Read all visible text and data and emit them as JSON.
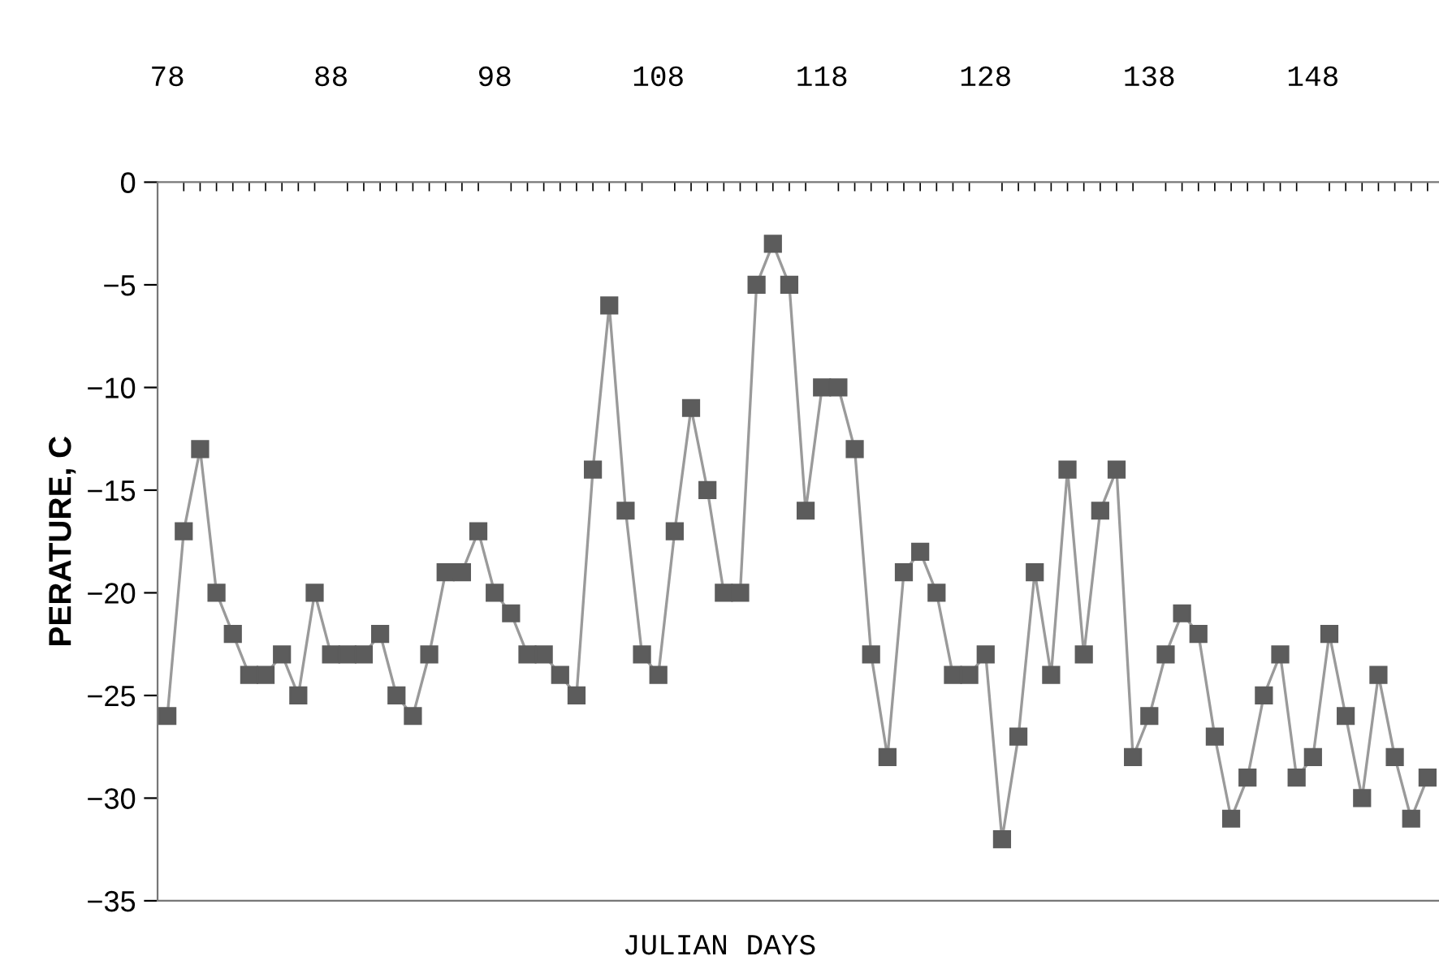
{
  "chart_data": {
    "type": "line",
    "xlabel": "JULIAN DAYS",
    "ylabel": "PERATURE, C",
    "x": [
      78,
      79,
      80,
      81,
      82,
      83,
      84,
      85,
      86,
      87,
      88,
      89,
      90,
      91,
      92,
      93,
      94,
      95,
      96,
      97,
      98,
      99,
      100,
      101,
      102,
      103,
      104,
      105,
      106,
      107,
      108,
      109,
      110,
      111,
      112,
      113,
      114,
      115,
      116,
      117,
      118,
      119,
      120,
      121,
      122,
      123,
      124,
      125,
      126,
      127,
      128,
      129,
      130,
      131,
      132,
      133,
      134,
      135,
      136,
      137,
      138,
      139,
      140,
      141,
      142,
      143,
      144,
      145,
      146,
      147,
      148,
      149,
      150,
      151,
      152,
      153,
      154,
      155
    ],
    "series": [
      {
        "color": "#5c5c5c",
        "values": [
          -26,
          -17,
          -13,
          -20,
          -22,
          -24,
          -24,
          -23,
          -25,
          -20,
          -23,
          -23,
          -23,
          -22,
          -25,
          -26,
          -23,
          -19,
          -19,
          -17,
          -20,
          -21,
          -23,
          -23,
          -24,
          -25,
          -14,
          -6,
          -16,
          -23,
          -24,
          -17,
          -11,
          -15,
          -20,
          -20,
          -5,
          -3,
          -5,
          -16,
          -10,
          -10,
          -13,
          -23,
          -28,
          -19,
          -18,
          -20,
          -24,
          -24,
          -23,
          -32,
          -27,
          -19,
          -24,
          -14,
          -23,
          -16,
          -14,
          -28,
          -26,
          -23,
          -21,
          -22,
          -27,
          -31,
          -29,
          -25,
          -23,
          -29,
          -28,
          -22,
          -26,
          -30,
          -24,
          -28,
          -31,
          -29
        ]
      }
    ],
    "xlim": [
      77.4,
      155.7
    ],
    "xticks": [
      78,
      88,
      98,
      108,
      118,
      128,
      138,
      148
    ],
    "ylim": [
      -35,
      0
    ],
    "yticks": [
      0,
      -5,
      -10,
      -15,
      -20,
      -25,
      -30,
      -35
    ],
    "marker": "square",
    "line_style": "solid"
  }
}
